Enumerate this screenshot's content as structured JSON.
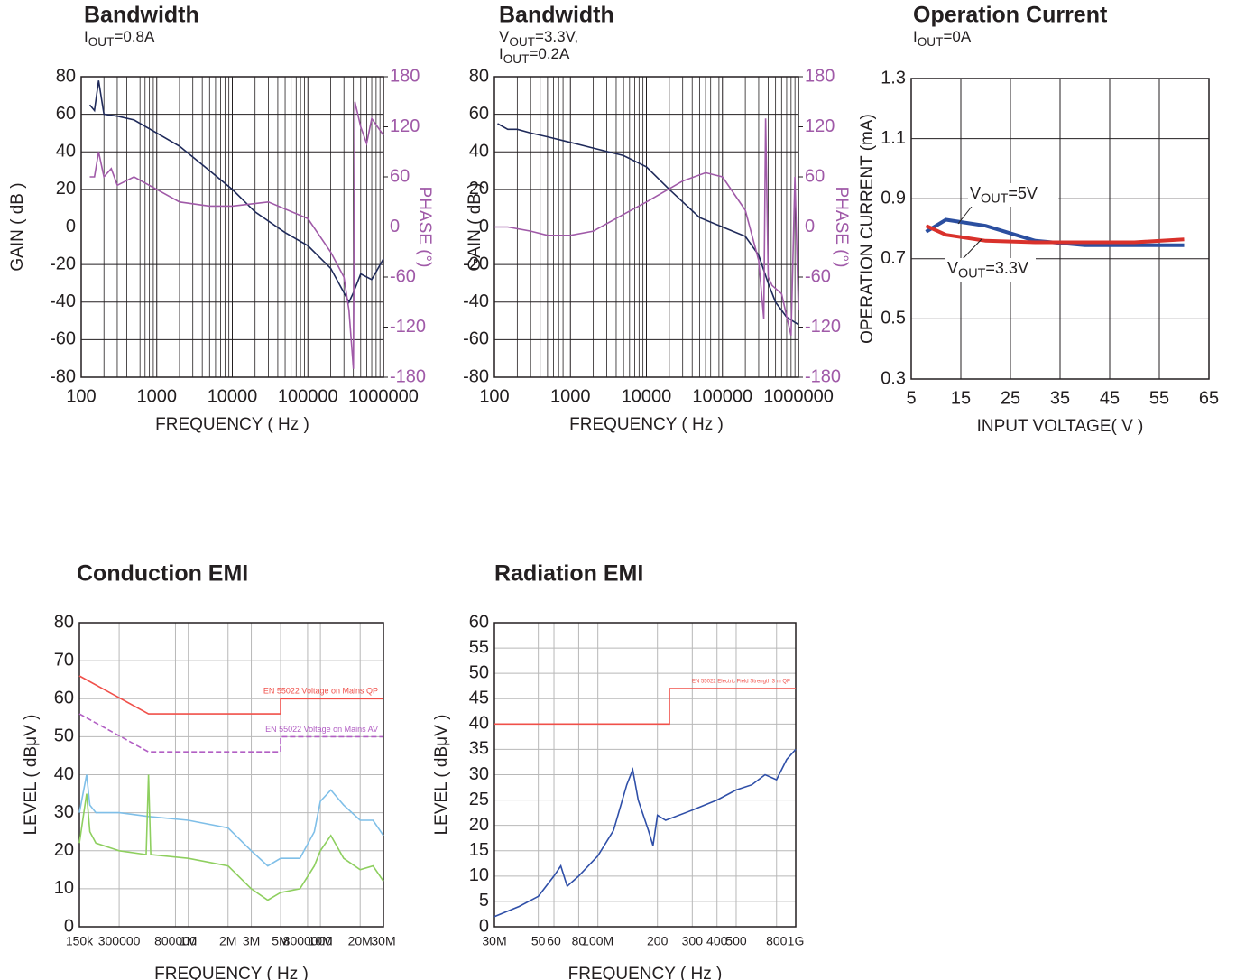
{
  "chart_data": [
    {
      "type": "line",
      "title": "Bandwidth",
      "subtitle": [
        [
          {
            "text": "I"
          },
          {
            "text": "OUT",
            "sub": true
          },
          {
            "text": "=0.8A"
          }
        ]
      ],
      "xscale": "log",
      "xlim": [
        100,
        1000000
      ],
      "xticks": [
        100,
        1000,
        10000,
        100000,
        1000000
      ],
      "ylim": [
        -80,
        80
      ],
      "yticks": [
        -80,
        -60,
        -40,
        -20,
        0,
        20,
        40,
        60,
        80
      ],
      "y2lim": [
        -180,
        180
      ],
      "y2ticks": [
        -180,
        -120,
        -60,
        0,
        60,
        120,
        180
      ],
      "y2color": "#a05aa8",
      "xlabel": "FREQUENCY ( Hz )",
      "ylabel": "GAIN ( dB )",
      "y2label": "PHASE (°)",
      "grid": true,
      "minor_grid": true,
      "grid_color": "#231f20",
      "series": [
        {
          "color": "#1f2a5a",
          "x": [
            130,
            150,
            170,
            200,
            300,
            500,
            1000,
            2000,
            5000,
            10000,
            20000,
            50000,
            100000,
            200000,
            300000,
            350000,
            400000,
            500000,
            700000,
            1000000
          ],
          "values": [
            65,
            62,
            78,
            60,
            59,
            57,
            50,
            43,
            30,
            20,
            8,
            -3,
            -10,
            -22,
            -35,
            -40,
            -35,
            -25,
            -28,
            -17
          ]
        },
        {
          "color": "#a05aa8",
          "axis": "y2",
          "x": [
            130,
            150,
            170,
            200,
            250,
            300,
            500,
            1000,
            2000,
            5000,
            10000,
            30000,
            100000,
            200000,
            300000,
            350000,
            400000,
            420000,
            500000,
            600000,
            700000,
            1000000
          ],
          "values": [
            60,
            60,
            90,
            60,
            70,
            50,
            60,
            45,
            30,
            25,
            25,
            30,
            10,
            -30,
            -60,
            -100,
            -170,
            150,
            120,
            100,
            130,
            110
          ]
        }
      ]
    },
    {
      "type": "line",
      "title": "Bandwidth",
      "subtitle": [
        [
          {
            "text": "V"
          },
          {
            "text": "OUT",
            "sub": true
          },
          {
            "text": "=3.3V,"
          }
        ],
        [
          {
            "text": "I"
          },
          {
            "text": "OUT",
            "sub": true
          },
          {
            "text": "=0.2A"
          }
        ]
      ],
      "xscale": "log",
      "xlim": [
        100,
        1000000
      ],
      "xticks": [
        100,
        1000,
        10000,
        100000,
        1000000
      ],
      "ylim": [
        -80,
        80
      ],
      "yticks": [
        -80,
        -60,
        -40,
        -20,
        0,
        20,
        40,
        60,
        80
      ],
      "y2lim": [
        -180,
        180
      ],
      "y2ticks": [
        -180,
        -120,
        -60,
        0,
        60,
        120,
        180
      ],
      "y2color": "#a05aa8",
      "xlabel": "FREQUENCY ( Hz )",
      "ylabel": "GAIN ( dB )",
      "y2label": "PHASE (°)",
      "grid": true,
      "minor_grid": true,
      "grid_color": "#231f20",
      "series": [
        {
          "color": "#1f2a5a",
          "x": [
            110,
            150,
            200,
            300,
            500,
            1000,
            2000,
            5000,
            10000,
            20000,
            50000,
            100000,
            200000,
            300000,
            400000,
            500000,
            700000,
            1000000
          ],
          "values": [
            55,
            52,
            52,
            50,
            48,
            45,
            42,
            38,
            32,
            20,
            5,
            0,
            -5,
            -15,
            -30,
            -40,
            -48,
            -52
          ]
        },
        {
          "color": "#a05aa8",
          "axis": "y2",
          "x": [
            100,
            150,
            300,
            500,
            1000,
            2000,
            5000,
            10000,
            30000,
            60000,
            100000,
            200000,
            300000,
            350000,
            370000,
            400000,
            450000,
            600000,
            800000,
            900000,
            1000000
          ],
          "values": [
            0,
            0,
            -5,
            -10,
            -10,
            -5,
            15,
            30,
            55,
            65,
            60,
            20,
            -40,
            -110,
            130,
            -60,
            -70,
            -80,
            -130,
            60,
            -100
          ]
        }
      ]
    },
    {
      "type": "line",
      "title": "Operation Current",
      "subtitle": [
        [
          {
            "text": "I"
          },
          {
            "text": "OUT",
            "sub": true
          },
          {
            "text": "=0A"
          }
        ]
      ],
      "xlim": [
        5,
        65
      ],
      "xticks": [
        5,
        15,
        25,
        35,
        45,
        55,
        65
      ],
      "ylim": [
        0.3,
        1.3
      ],
      "yticks": [
        0.3,
        0.5,
        0.7,
        0.9,
        1.1,
        1.3
      ],
      "xlabel": "INPUT VOLTAGE( V )",
      "ylabel": "OPERATION CURRENT (mA)",
      "grid": true,
      "grid_color": "#231f20",
      "series": [
        {
          "color": "#2b4fa0",
          "x": [
            8,
            12,
            20,
            30,
            40,
            50,
            60
          ],
          "values": [
            0.79,
            0.83,
            0.81,
            0.76,
            0.745,
            0.745,
            0.745
          ]
        },
        {
          "color": "#d9312b",
          "x": [
            8,
            12,
            20,
            30,
            40,
            50,
            60
          ],
          "values": [
            0.81,
            0.78,
            0.76,
            0.755,
            0.755,
            0.755,
            0.765
          ]
        }
      ],
      "annotations": [
        [
          {
            "text": "V"
          },
          {
            "text": "OUT",
            "sub": true
          },
          {
            "text": "=5V"
          }
        ],
        [
          {
            "text": "V"
          },
          {
            "text": "OUT",
            "sub": true
          },
          {
            "text": "=3.3V"
          }
        ]
      ]
    },
    {
      "type": "line",
      "title": "Conduction EMI",
      "xscale": "log",
      "xlim": [
        150000,
        30000000
      ],
      "xticks": [
        {
          "value": 150000,
          "label": "150k"
        },
        300000,
        800000,
        {
          "value": 1000000,
          "label": "1M"
        },
        {
          "value": 2000000,
          "label": "2M"
        },
        {
          "value": 3000000,
          "label": "3M"
        },
        {
          "value": 5000000,
          "label": "5M"
        },
        8000000,
        {
          "value": 10000000,
          "label": "10M"
        },
        {
          "value": 20000000,
          "label": "20M"
        },
        {
          "value": 30000000,
          "label": "30M"
        }
      ],
      "ylim": [
        0,
        80
      ],
      "yticks": [
        0,
        10,
        20,
        30,
        40,
        50,
        60,
        70,
        80
      ],
      "xlabel": "FREQUENCY ( Hz )",
      "ylabel": "LEVEL ( dBμV )",
      "grid": true,
      "grid_color": "#b8b8b8",
      "series": [
        {
          "name": "EN 55022 Voltage on Mains QP",
          "color": "#f0504a",
          "x": [
            150000,
            500000,
            5000000,
            5000000,
            30000000
          ],
          "values": [
            66,
            56,
            56,
            60,
            60
          ]
        },
        {
          "name": "EN 55022 Voltage on Mains AV",
          "color": "#b25fc4",
          "dash": true,
          "x": [
            150000,
            500000,
            5000000,
            5000000,
            30000000
          ],
          "values": [
            56,
            46,
            46,
            50,
            50
          ]
        },
        {
          "color": "#7fbfe8",
          "x": [
            150000,
            170000,
            180000,
            200000,
            300000,
            500000,
            1000000,
            2000000,
            3000000,
            4000000,
            5000000,
            7000000,
            9000000,
            10000000,
            12000000,
            15000000,
            20000000,
            25000000,
            30000000
          ],
          "values": [
            30,
            40,
            32,
            30,
            30,
            29,
            28,
            26,
            20,
            16,
            18,
            18,
            25,
            33,
            36,
            32,
            28,
            28,
            24
          ]
        },
        {
          "color": "#8ecf5f",
          "x": [
            150000,
            170000,
            180000,
            200000,
            300000,
            480000,
            500000,
            520000,
            1000000,
            2000000,
            3000000,
            4000000,
            5000000,
            7000000,
            9000000,
            10000000,
            12000000,
            15000000,
            20000000,
            25000000,
            30000000
          ],
          "values": [
            22,
            35,
            25,
            22,
            20,
            19,
            40,
            19,
            18,
            16,
            10,
            7,
            9,
            10,
            16,
            20,
            24,
            18,
            15,
            16,
            12
          ]
        }
      ]
    },
    {
      "type": "line",
      "title": "Radiation EMI",
      "xscale": "log",
      "xlim": [
        30000000,
        1000000000
      ],
      "xticks": [
        {
          "value": 30000000,
          "label": "30M"
        },
        {
          "value": 50000000,
          "label": "50"
        },
        {
          "value": 60000000,
          "label": "60"
        },
        {
          "value": 80000000,
          "label": "80"
        },
        {
          "value": 100000000,
          "label": "100M"
        },
        {
          "value": 200000000,
          "label": "200"
        },
        {
          "value": 300000000,
          "label": "300"
        },
        {
          "value": 400000000,
          "label": "400"
        },
        {
          "value": 500000000,
          "label": "500"
        },
        {
          "value": 800000000,
          "label": "800"
        },
        {
          "value": 1000000000,
          "label": "1G"
        }
      ],
      "ylim": [
        0,
        60
      ],
      "yticks": [
        0,
        5,
        10,
        15,
        20,
        25,
        30,
        35,
        40,
        45,
        50,
        55,
        60
      ],
      "xlabel": "FREQUENCY ( Hz )",
      "ylabel": "LEVEL ( dBμV )",
      "grid": true,
      "grid_color": "#b8b8b8",
      "series": [
        {
          "name": "EN 55022 Electric Field Strength 3 m QP",
          "color": "#f0504a",
          "x": [
            30000000,
            230000000,
            230000000,
            1000000000
          ],
          "values": [
            40,
            40,
            47,
            47
          ]
        },
        {
          "color": "#2f4fa8",
          "x": [
            30000000,
            40000000,
            50000000,
            60000000,
            65000000,
            70000000,
            80000000,
            100000000,
            120000000,
            140000000,
            150000000,
            160000000,
            180000000,
            190000000,
            200000000,
            220000000,
            300000000,
            400000000,
            500000000,
            600000000,
            700000000,
            800000000,
            900000000,
            1000000000
          ],
          "values": [
            2,
            4,
            6,
            10,
            12,
            8,
            10,
            14,
            19,
            28,
            31,
            25,
            19,
            16,
            22,
            21,
            23,
            25,
            27,
            28,
            30,
            29,
            33,
            35
          ]
        }
      ]
    }
  ]
}
